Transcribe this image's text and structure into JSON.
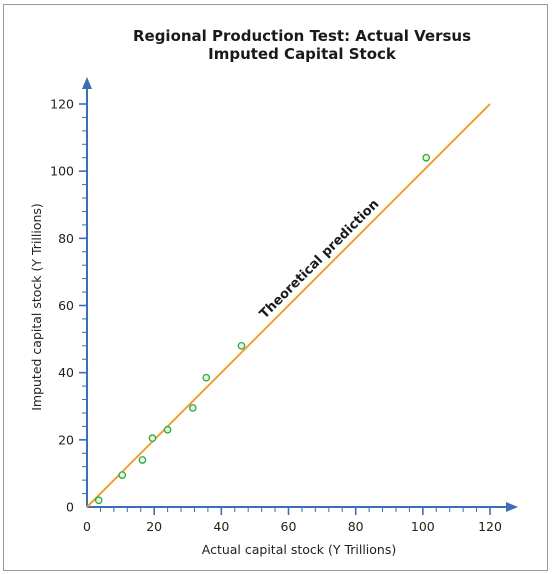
{
  "chart_data": {
    "type": "scatter",
    "title_line1": "Regional Production Test: Actual Versus",
    "title_line2": "Imputed Capital Stock",
    "xlabel": "Actual capital stock (Y Trillions)",
    "ylabel": "Imputed capital stock (Y Trillions)",
    "xlim": [
      0,
      120
    ],
    "ylim": [
      0,
      120
    ],
    "x_ticks": [
      0,
      20,
      40,
      60,
      80,
      100,
      120
    ],
    "y_ticks": [
      0,
      20,
      40,
      60,
      80,
      100,
      120
    ],
    "x_tick_labels": [
      "0",
      "20",
      "40",
      "60",
      "80",
      "100",
      "120"
    ],
    "y_tick_labels": [
      "0",
      "20",
      "40",
      "60",
      "80",
      "100",
      "120"
    ],
    "grid": false,
    "series": [
      {
        "type": "scatter",
        "color": "#2aa84a",
        "points": [
          {
            "x": 3.5,
            "y": 2.0
          },
          {
            "x": 10.5,
            "y": 9.5
          },
          {
            "x": 16.5,
            "y": 14.0
          },
          {
            "x": 19.5,
            "y": 20.5
          },
          {
            "x": 24.0,
            "y": 23.0
          },
          {
            "x": 31.5,
            "y": 29.5
          },
          {
            "x": 35.5,
            "y": 38.5
          },
          {
            "x": 46.0,
            "y": 48.0
          },
          {
            "x": 101.0,
            "y": 104.0
          }
        ]
      },
      {
        "type": "line",
        "color": "#f0a030",
        "x": [
          0,
          120
        ],
        "y": [
          0,
          120
        ]
      }
    ],
    "annotations": [
      {
        "text": "Theoretical prediction",
        "x": 70,
        "y": 73
      }
    ],
    "axis_color": "#3a6fb5"
  }
}
